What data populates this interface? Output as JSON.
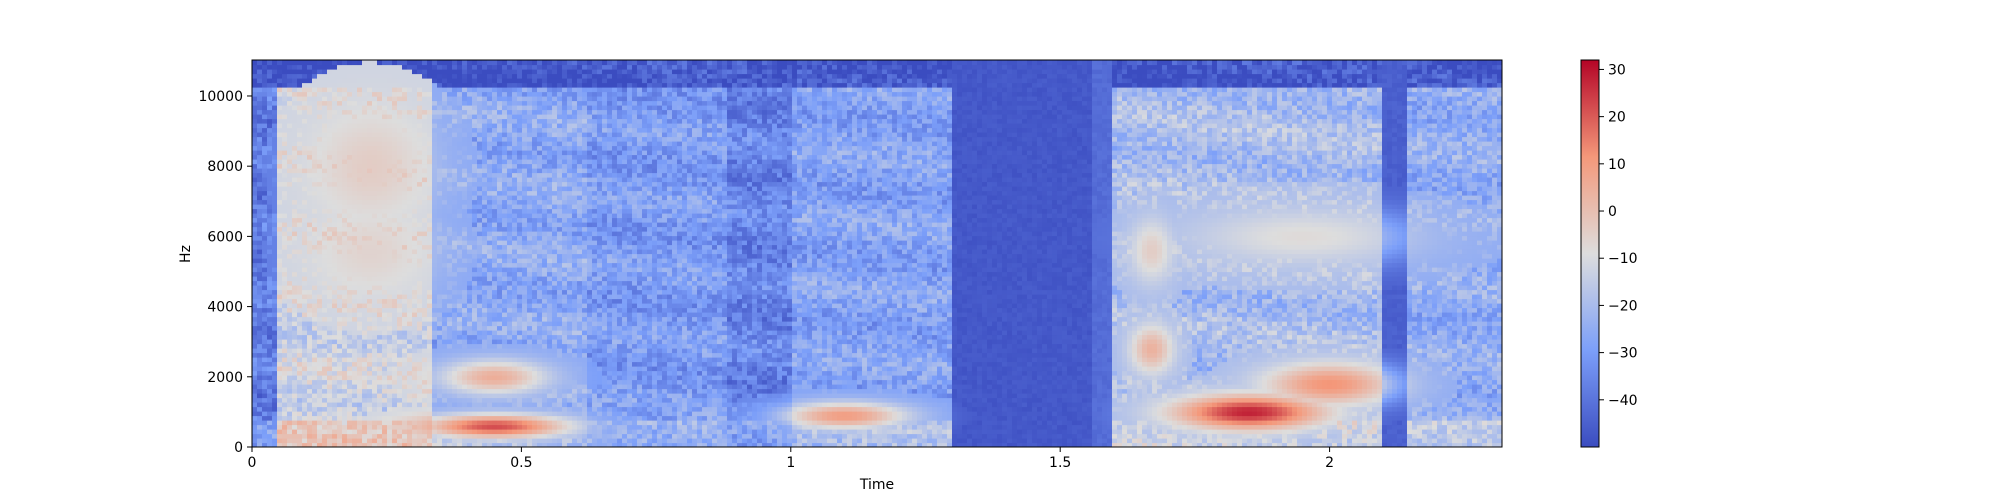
{
  "chart_data": {
    "type": "heatmap",
    "title": "",
    "xlabel": "Time",
    "ylabel": "Hz",
    "xlim": [
      0,
      2.32
    ],
    "ylim": [
      0,
      11025
    ],
    "xticks": [
      0,
      0.5,
      1,
      1.5,
      2
    ],
    "xtick_labels": [
      "0",
      "0.5",
      "1",
      "1.5",
      "2"
    ],
    "yticks": [
      0,
      2000,
      4000,
      6000,
      8000,
      10000
    ],
    "ytick_labels": [
      "0",
      "2000",
      "4000",
      "6000",
      "8000",
      "10000"
    ],
    "colormap": "coolwarm",
    "colorbar": {
      "range": [
        -50,
        32
      ],
      "ticks": [
        30,
        20,
        10,
        0,
        -10,
        -20,
        -30,
        -40
      ],
      "tick_labels": [
        "30",
        "20",
        "10",
        "0",
        "−10",
        "−20",
        "−30",
        "−40"
      ]
    },
    "segments": [
      {
        "start": 0.0,
        "end": 0.05,
        "level": -38
      },
      {
        "start": 0.05,
        "end": 0.33,
        "level": -12
      },
      {
        "start": 0.33,
        "end": 0.62,
        "level": -26
      },
      {
        "start": 0.62,
        "end": 0.88,
        "level": -30
      },
      {
        "start": 0.88,
        "end": 1.0,
        "level": -36
      },
      {
        "start": 1.0,
        "end": 1.3,
        "level": -28
      },
      {
        "start": 1.3,
        "end": 1.56,
        "level": -47
      },
      {
        "start": 1.56,
        "end": 1.6,
        "level": -42
      },
      {
        "start": 1.6,
        "end": 2.1,
        "level": -20
      },
      {
        "start": 2.1,
        "end": 2.14,
        "level": -45
      },
      {
        "start": 2.14,
        "end": 2.32,
        "level": -25
      }
    ],
    "hotspots": [
      {
        "time": 0.45,
        "freq": 600,
        "level": 22,
        "time_width": 0.14,
        "freq_width": 350
      },
      {
        "time": 0.45,
        "freq": 2000,
        "level": 5,
        "time_width": 0.1,
        "freq_width": 500
      },
      {
        "time": 0.22,
        "freq": 8000,
        "level": -4,
        "time_width": 0.1,
        "freq_width": 1500
      },
      {
        "time": 0.22,
        "freq": 5600,
        "level": -6,
        "time_width": 0.1,
        "freq_width": 1200
      },
      {
        "time": 1.1,
        "freq": 900,
        "level": 10,
        "time_width": 0.12,
        "freq_width": 400
      },
      {
        "time": 1.85,
        "freq": 1000,
        "level": 28,
        "time_width": 0.14,
        "freq_width": 500
      },
      {
        "time": 2.0,
        "freq": 1800,
        "level": 12,
        "time_width": 0.12,
        "freq_width": 600
      },
      {
        "time": 1.67,
        "freq": 2800,
        "level": 4,
        "time_width": 0.04,
        "freq_width": 700
      },
      {
        "time": 1.67,
        "freq": 5600,
        "level": -4,
        "time_width": 0.04,
        "freq_width": 900
      },
      {
        "time": 1.95,
        "freq": 6000,
        "level": -8,
        "time_width": 0.2,
        "freq_width": 800
      }
    ]
  }
}
